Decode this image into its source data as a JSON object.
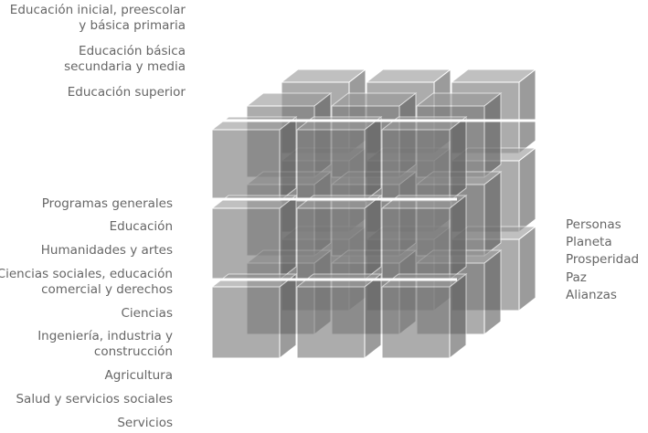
{
  "levels": [
    {
      "line1": "Educación inicial, preescolar",
      "line2": "y básica primaria"
    },
    {
      "line1": "Educación básica",
      "line2": "secundaria y media"
    },
    {
      "line1": "Educación superior",
      "line2": ""
    }
  ],
  "fields": [
    {
      "line1": "Programas generales",
      "line2": ""
    },
    {
      "line1": "Educación",
      "line2": ""
    },
    {
      "line1": "Humanidades y artes",
      "line2": ""
    },
    {
      "line1": "Ciencias sociales, educación",
      "line2": "comercial y derechos"
    },
    {
      "line1": "Ciencias",
      "line2": ""
    },
    {
      "line1": "Ingeniería, industria y",
      "line2": "construcción"
    },
    {
      "line1": "Agricultura",
      "line2": ""
    },
    {
      "line1": "Salud y servicios sociales",
      "line2": ""
    },
    {
      "line1": "Servicios",
      "line2": ""
    }
  ],
  "dimensions": [
    "Personas",
    "Planeta",
    "Prosperidad",
    "Paz",
    "Alianzas"
  ],
  "colors": {
    "text": "#666666",
    "cube_face": "#7a7a7a",
    "cube_top": "#9a9a9a",
    "cube_side": "#5e5e5e",
    "cube_edge": "#ffffff"
  }
}
